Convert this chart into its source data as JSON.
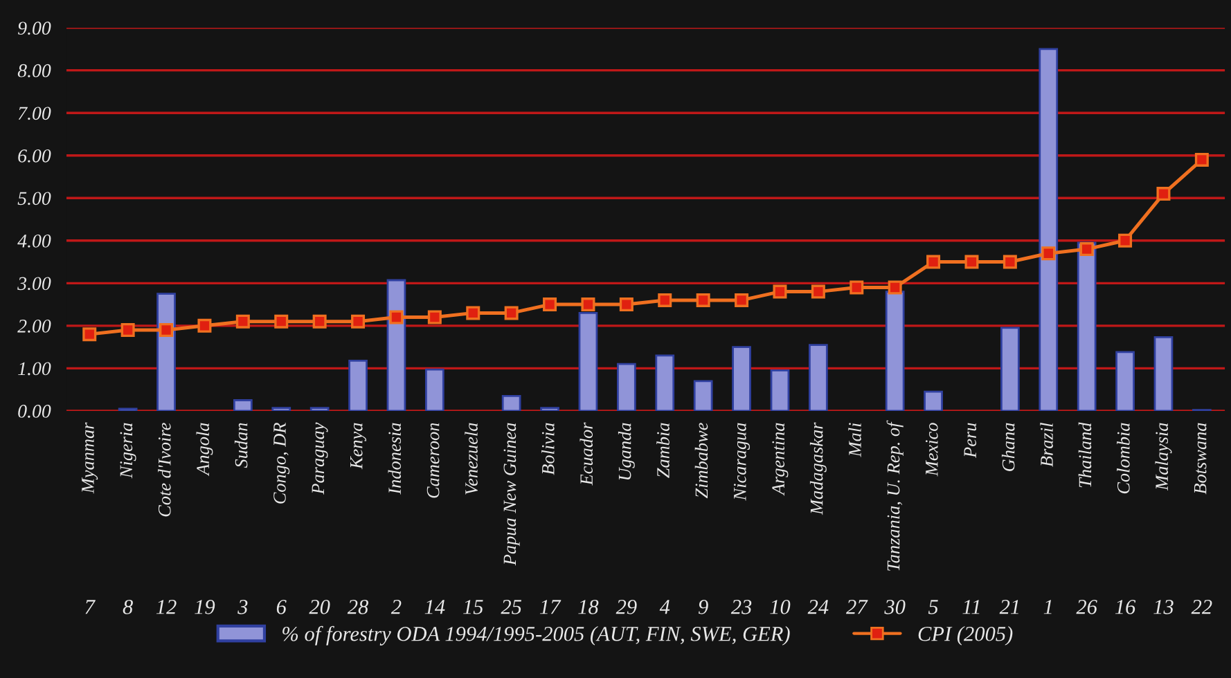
{
  "chart_data": {
    "type": "bar",
    "categories": [
      "Myanmar",
      "Nigeria",
      "Cote d'Ivoire",
      "Angola",
      "Sudan",
      "Congo, DR",
      "Paraguay",
      "Kenya",
      "Indonesia",
      "Cameroon",
      "Venezuela",
      "Papua New Guinea",
      "Bolivia",
      "Ecuador",
      "Uganda",
      "Zambia",
      "Zimbabwe",
      "Nicaragua",
      "Argentina",
      "Madagaskar",
      "Mali",
      "Tanzania, U. Rep. of",
      "Mexico",
      "Peru",
      "Ghana",
      "Brazil",
      "Thailand",
      "Colombia",
      "Malaysia",
      "Botswana"
    ],
    "series": [
      {
        "name": "% of forestry ODA 1994/1995-2005 (AUT, FIN, SWE, GER)",
        "color": "#9094d8",
        "values": [
          null,
          0.05,
          2.75,
          null,
          0.25,
          0.07,
          0.07,
          1.18,
          3.07,
          0.97,
          null,
          0.35,
          0.07,
          2.3,
          1.1,
          1.3,
          0.7,
          1.5,
          0.95,
          1.55,
          null,
          2.8,
          0.45,
          null,
          1.95,
          8.5,
          3.95,
          1.38,
          1.73,
          0.02
        ]
      },
      {
        "name": "CPI (2005)",
        "type": "line",
        "color": "#f07020",
        "marker": "square",
        "values": [
          1.8,
          1.9,
          1.9,
          2.0,
          2.1,
          2.1,
          2.1,
          2.1,
          2.2,
          2.2,
          2.3,
          2.3,
          2.5,
          2.5,
          2.5,
          2.6,
          2.6,
          2.6,
          2.8,
          2.8,
          2.9,
          2.9,
          3.5,
          3.5,
          3.5,
          3.7,
          3.8,
          4.0,
          5.1,
          5.9
        ]
      }
    ],
    "ylim": [
      0,
      9
    ],
    "yticks": [
      {
        "value": 0,
        "label": "0.00"
      },
      {
        "value": 1,
        "label": "1.00"
      },
      {
        "value": 2,
        "label": "2.00"
      },
      {
        "value": 3,
        "label": "3.00"
      },
      {
        "value": 4,
        "label": "4.00"
      },
      {
        "value": 5,
        "label": "5.00"
      },
      {
        "value": 6,
        "label": "6.00"
      },
      {
        "value": 7,
        "label": "7.00"
      },
      {
        "value": 8,
        "label": "8.00"
      },
      {
        "value": 9,
        "label": "9.00"
      }
    ],
    "grid": "y",
    "legend": "bottom",
    "annotations": [
      "7",
      "8",
      "12",
      "19",
      "3",
      "6",
      "20",
      "28",
      "2",
      "14",
      "15",
      "25",
      "17",
      "18",
      "29",
      "4",
      "9",
      "23",
      "10",
      "24",
      "27",
      "30",
      "5",
      "11",
      "21",
      "1",
      "26",
      "16",
      "13",
      "22"
    ]
  }
}
